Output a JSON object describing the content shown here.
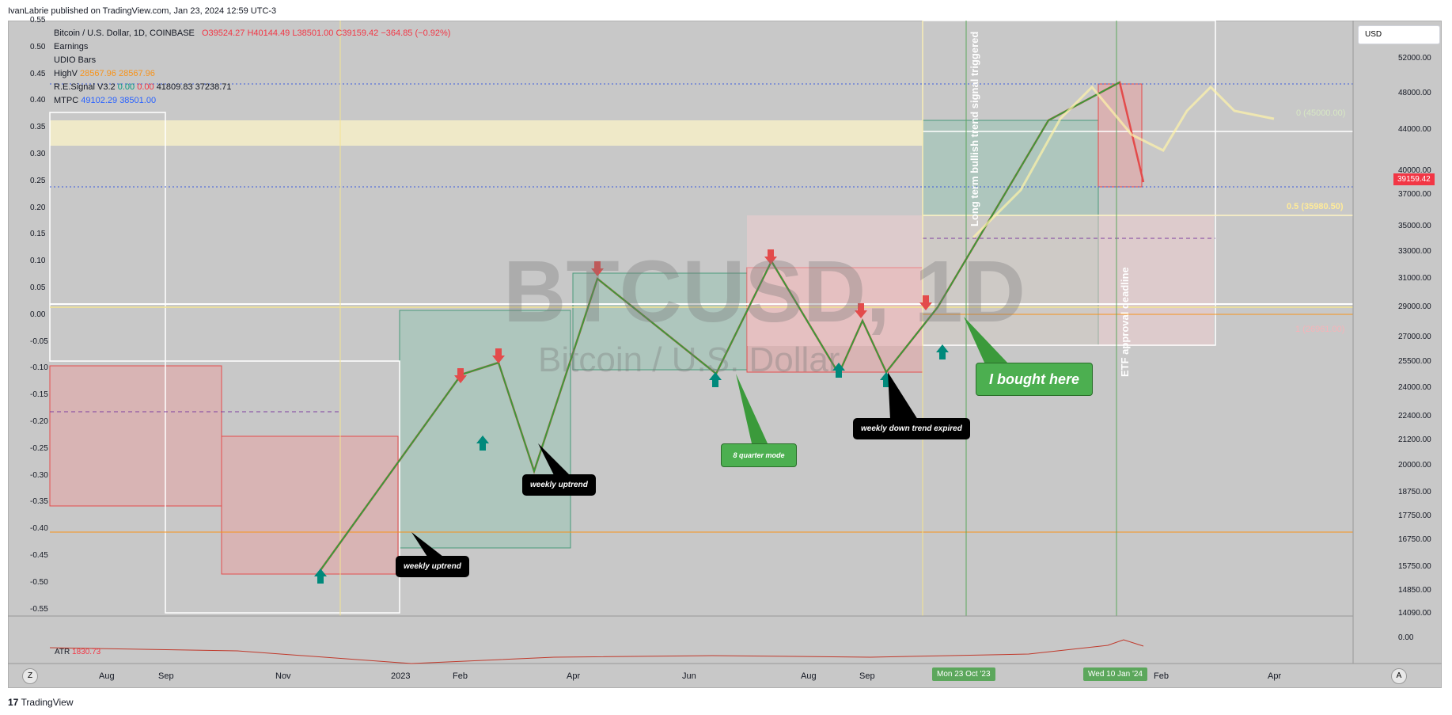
{
  "header": {
    "publish_text": "IvanLabrie published on TradingView.com, Jan 23, 2024 12:59 UTC-3"
  },
  "legend": {
    "title": "Bitcoin / U.S. Dollar, 1D, COINBASE",
    "ohlc": [
      {
        "k": "O",
        "v": "39524.27"
      },
      {
        "k": "H",
        "v": "40144.49"
      },
      {
        "k": "L",
        "v": "38501.00"
      },
      {
        "k": "C",
        "v": "39159.42"
      }
    ],
    "change": "−364.85 (−0.92%)",
    "earnings": "Earnings",
    "udio": "UDIO Bars",
    "highv_label": "HighV",
    "highv_1": "28567.96",
    "highv_2": "28567.96",
    "re_label": "R.E.Signal V3.2",
    "re_1": "0.00",
    "re_2": "0.00",
    "re_3": "41809.83",
    "re_4": "37238.71",
    "mtpc_label": "MTPC",
    "mtpc_1": "49102.29",
    "mtpc_2": "38501.00"
  },
  "currency_selector": {
    "value": "USD"
  },
  "price_axis": [
    "52000.00",
    "48000.00",
    "44000.00",
    "40000.00",
    "37000.00",
    "35000.00",
    "33000.00",
    "31000.00",
    "29000.00",
    "27000.00",
    "25500.00",
    "24000.00",
    "22400.00",
    "21200.00",
    "20000.00",
    "18750.00",
    "17750.00",
    "16750.00",
    "15750.00",
    "14850.00",
    "14090.00",
    "0.00"
  ],
  "current_price": "39159.42",
  "oscillator_axis": [
    "0.55",
    "0.50",
    "0.45",
    "0.40",
    "0.35",
    "0.30",
    "0.25",
    "0.20",
    "0.15",
    "0.10",
    "0.05",
    "0.00",
    "-0.05",
    "-0.10",
    "-0.15",
    "-0.20",
    "-0.25",
    "-0.30",
    "-0.35",
    "-0.40",
    "-0.45",
    "-0.50",
    "-0.55"
  ],
  "time_axis": [
    "Aug",
    "Sep",
    "Nov",
    "2023",
    "Feb",
    "Apr",
    "Jun",
    "Aug",
    "Sep",
    "Feb",
    "Apr"
  ],
  "time_badges": [
    "Mon 23 Oct '23",
    "Wed 10 Jan '24"
  ],
  "fib_levels": {
    "top": "0 (45000.00)",
    "mid": "0.5 (35980.50)",
    "bottom": "1 (26961.00)"
  },
  "annotations": {
    "weekly_uptrend_1": "weekly uptrend",
    "weekly_uptrend_2": "weekly uptrend",
    "quarter_mode": "8 quarter mode",
    "down_trend_expired": "weekly down trend expired",
    "bought": "I bought here",
    "long_term": "Long term bullish trend signal triggered",
    "etf": "ETF approval deadline"
  },
  "watermark": {
    "symbol": "BTCUSD, 1D",
    "name": "Bitcoin / U.S. Dollar"
  },
  "atr": {
    "label": "ATR",
    "value": "1830.73"
  },
  "footer": {
    "brand": "TradingView",
    "left_btn": "Z",
    "right_btn": "A"
  },
  "colors": {
    "bull": "#089981",
    "bear": "#f23645",
    "highv": "#f7931a",
    "mtpc": "#2962ff"
  }
}
